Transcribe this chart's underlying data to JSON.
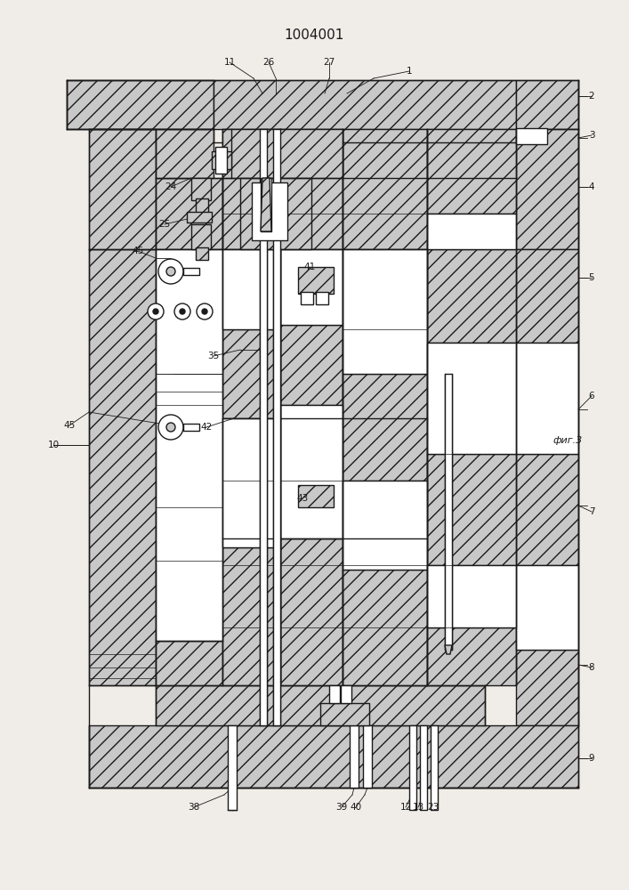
{
  "title": "1004001",
  "fig_label": "фиг.3",
  "bg_color": "#f0ede8",
  "line_color": "#1a1a1a",
  "lw_main": 1.0,
  "lw_thin": 0.5,
  "lw_thick": 1.5,
  "label_fontsize": 7.5,
  "title_fontsize": 11
}
